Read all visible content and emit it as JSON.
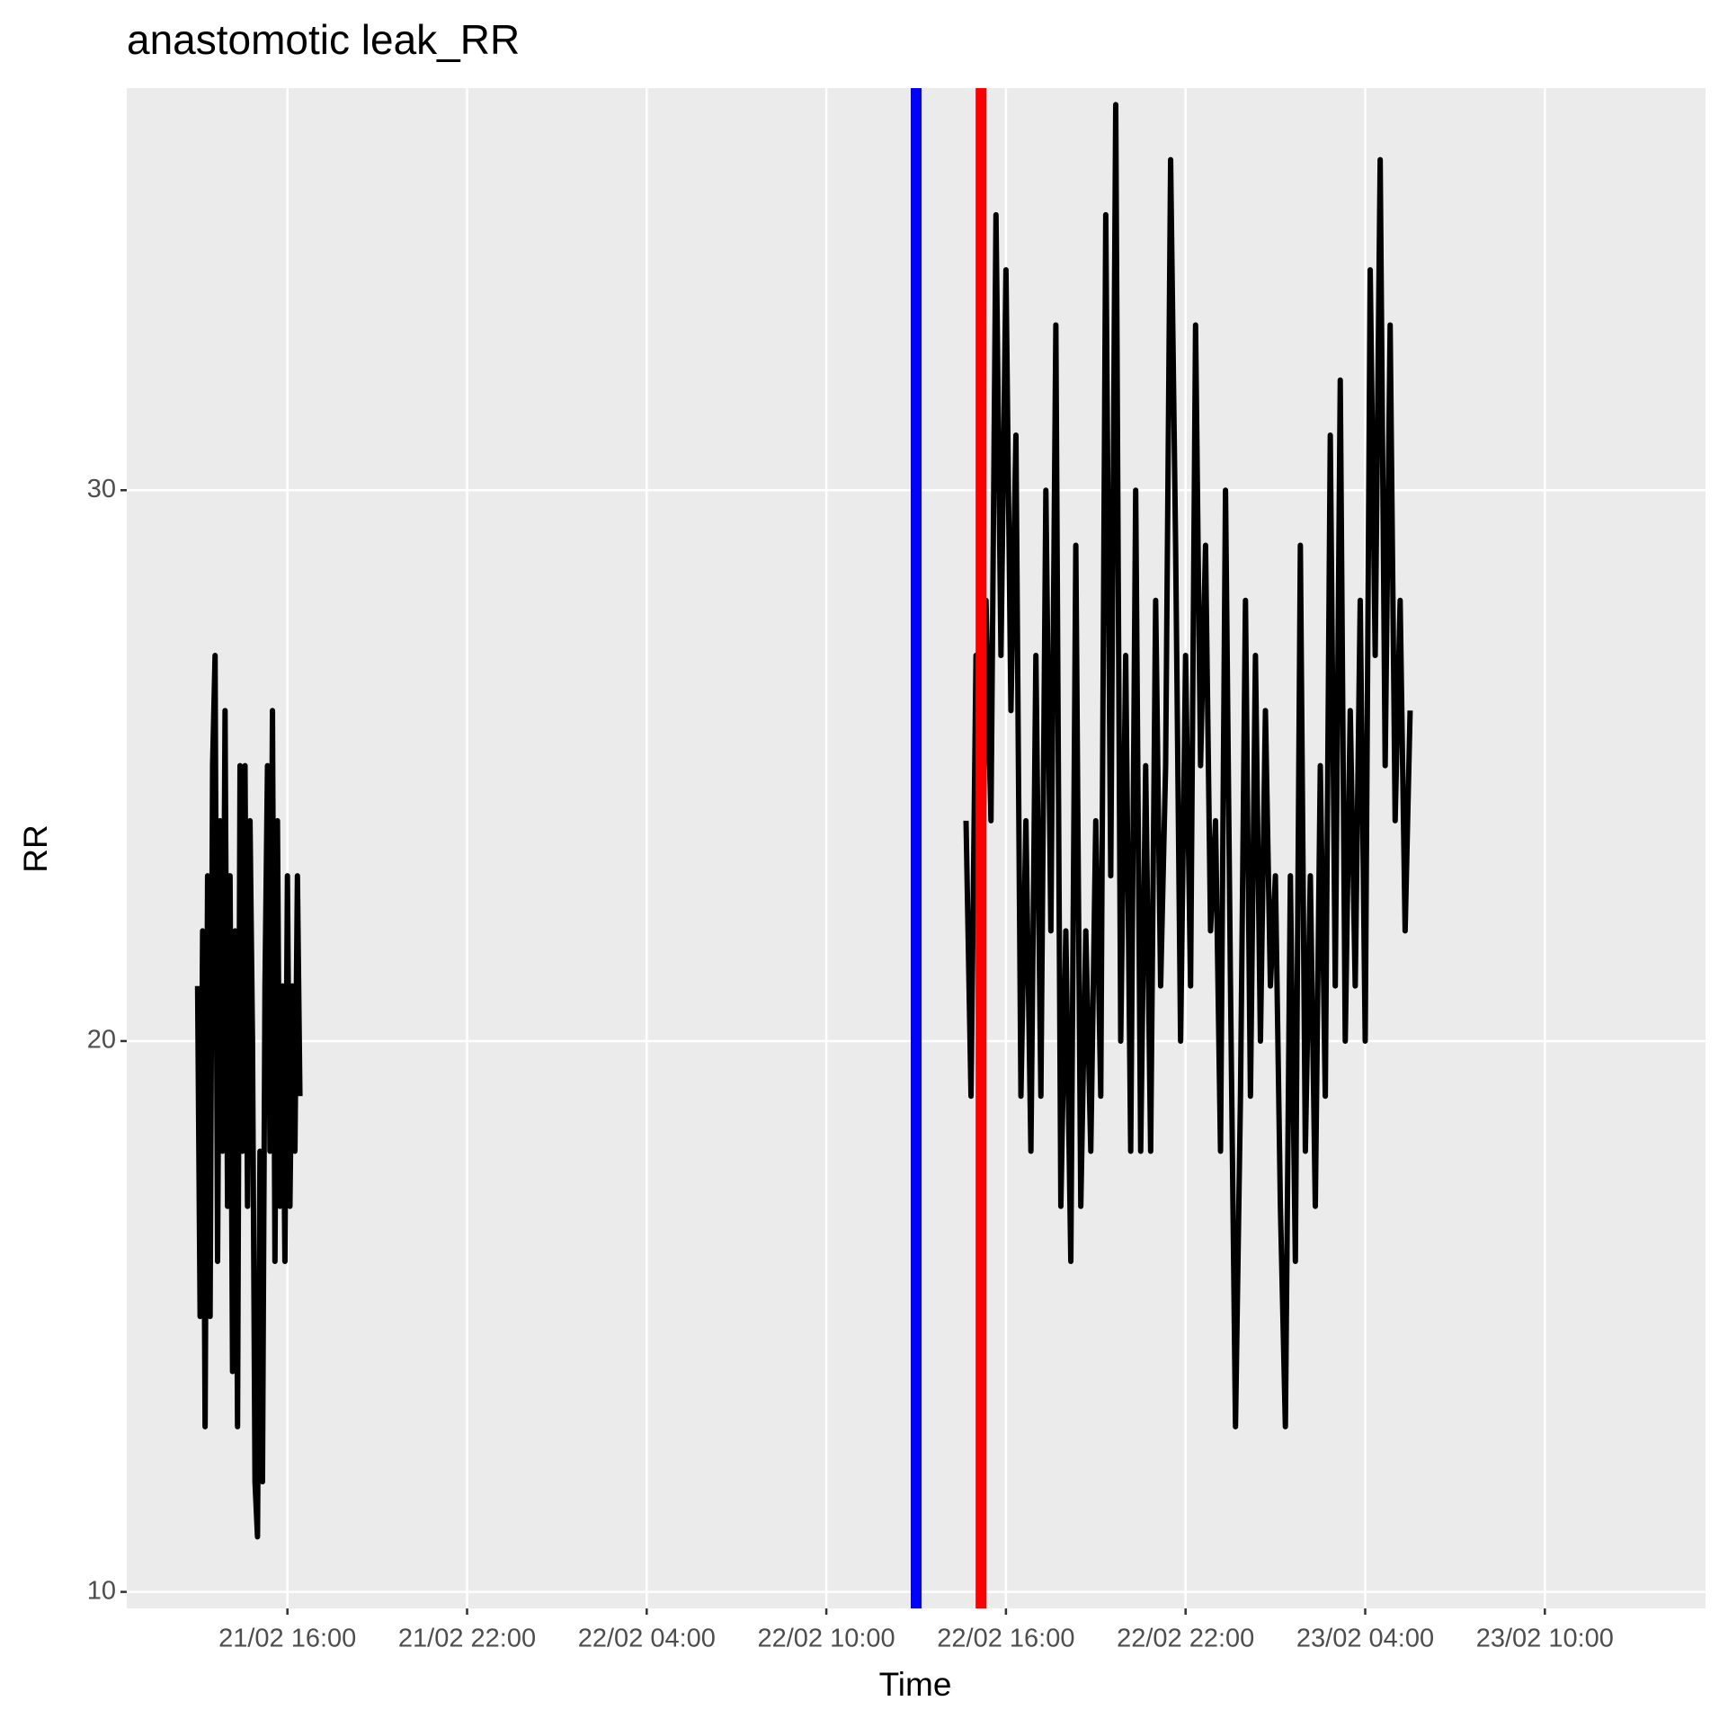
{
  "chart_data": {
    "type": "line",
    "title": "anastomotic leak_RR",
    "xlabel": "Time",
    "ylabel": "RR",
    "xlim": [
      "21/02 10:38",
      "23/02 15:22"
    ],
    "xticks": [
      "21/02 16:00",
      "21/02 22:00",
      "22/02 04:00",
      "22/02 10:00",
      "22/02 16:00",
      "22/02 22:00",
      "23/02 04:00",
      "23/02 10:00"
    ],
    "ylim": [
      9.7,
      37.3
    ],
    "yticks": [
      10,
      20,
      30
    ],
    "grid": true,
    "vlines": [
      {
        "x": "22/02 13:00",
        "color": "#0000ff"
      },
      {
        "x": "22/02 15:10",
        "color": "#ff0000"
      }
    ],
    "x": [
      "21/02 13:00",
      "21/02 13:05",
      "21/02 13:10",
      "21/02 13:15",
      "21/02 13:20",
      "21/02 13:25",
      "21/02 13:30",
      "21/02 13:35",
      "21/02 13:40",
      "21/02 13:45",
      "21/02 13:50",
      "21/02 13:55",
      "21/02 14:00",
      "21/02 14:05",
      "21/02 14:10",
      "21/02 14:15",
      "21/02 14:20",
      "21/02 14:25",
      "21/02 14:30",
      "21/02 14:35",
      "21/02 14:40",
      "21/02 14:45",
      "21/02 14:50",
      "21/02 14:55",
      "21/02 15:00",
      "21/02 15:05",
      "21/02 15:10",
      "21/02 15:15",
      "21/02 15:20",
      "21/02 15:25",
      "21/02 15:30",
      "21/02 15:35",
      "21/02 15:40",
      "21/02 15:45",
      "21/02 15:50",
      "21/02 15:55",
      "21/02 16:00",
      "21/02 16:05",
      "21/02 16:10",
      "21/02 16:15",
      "21/02 16:20",
      "21/02 16:25",
      "22/02 00:00",
      "22/02 14:40",
      "22/02 14:50",
      "22/02 15:00",
      "22/02 15:10",
      "22/02 15:20",
      "22/02 15:30",
      "22/02 15:40",
      "22/02 15:50",
      "22/02 16:00",
      "22/02 16:10",
      "22/02 16:20",
      "22/02 16:30",
      "22/02 16:40",
      "22/02 16:50",
      "22/02 17:00",
      "22/02 17:10",
      "22/02 17:20",
      "22/02 17:30",
      "22/02 17:40",
      "22/02 17:50",
      "22/02 18:00",
      "22/02 18:10",
      "22/02 18:20",
      "22/02 18:30",
      "22/02 18:40",
      "22/02 18:50",
      "22/02 19:00",
      "22/02 19:10",
      "22/02 19:20",
      "22/02 19:30",
      "22/02 19:40",
      "22/02 19:50",
      "22/02 20:00",
      "22/02 20:10",
      "22/02 20:20",
      "22/02 20:30",
      "22/02 20:40",
      "22/02 20:50",
      "22/02 21:00",
      "22/02 21:10",
      "22/02 21:20",
      "22/02 21:30",
      "22/02 21:40",
      "22/02 21:50",
      "22/02 22:00",
      "22/02 22:10",
      "22/02 22:20",
      "22/02 22:30",
      "22/02 22:40",
      "22/02 22:50",
      "22/02 23:00",
      "22/02 23:10",
      "22/02 23:20",
      "22/02 23:30",
      "22/02 23:40",
      "22/02 23:50",
      "23/02 00:00",
      "23/02 00:10",
      "23/02 00:20",
      "23/02 00:30",
      "23/02 00:40",
      "23/02 00:50",
      "23/02 01:00",
      "23/02 01:10",
      "23/02 01:20",
      "23/02 01:30",
      "23/02 01:40",
      "23/02 01:50",
      "23/02 02:00",
      "23/02 02:10",
      "23/02 02:20",
      "23/02 02:30",
      "23/02 02:40",
      "23/02 02:50",
      "23/02 03:00",
      "23/02 03:10",
      "23/02 03:20",
      "23/02 03:30",
      "23/02 03:40",
      "23/02 03:50",
      "23/02 04:00",
      "23/02 04:10",
      "23/02 04:20",
      "23/02 04:30",
      "23/02 04:40",
      "23/02 04:50",
      "23/02 05:00",
      "23/02 05:10",
      "23/02 05:20",
      "23/02 05:30"
    ],
    "series": [
      {
        "name": "RR",
        "color": "#000000",
        "values": [
          21,
          15,
          22,
          13,
          23,
          15,
          25,
          27,
          16,
          24,
          18,
          26,
          17,
          23,
          14,
          22,
          13,
          25,
          18,
          25,
          17,
          24,
          20,
          12,
          11,
          18,
          12,
          21,
          25,
          18,
          26,
          16,
          24,
          17,
          21,
          16,
          23,
          17,
          21,
          18,
          23,
          19,
          null,
          24,
          19,
          27,
          20,
          28,
          24,
          35,
          27,
          34,
          26,
          31,
          19,
          24,
          18,
          27,
          19,
          30,
          22,
          33,
          17,
          22,
          16,
          29,
          17,
          22,
          18,
          24,
          19,
          35,
          23,
          37,
          20,
          27,
          18,
          30,
          18,
          25,
          18,
          28,
          21,
          25,
          36,
          29,
          20,
          27,
          21,
          33,
          25,
          29,
          22,
          24,
          18,
          30,
          21,
          13,
          19,
          28,
          19,
          27,
          20,
          26,
          21,
          23,
          17,
          13,
          23,
          16,
          29,
          18,
          23,
          17,
          25,
          19,
          31,
          21,
          32,
          20,
          26,
          21,
          28,
          20,
          34,
          27,
          36,
          25,
          33,
          24,
          28,
          22,
          26
        ]
      }
    ]
  }
}
